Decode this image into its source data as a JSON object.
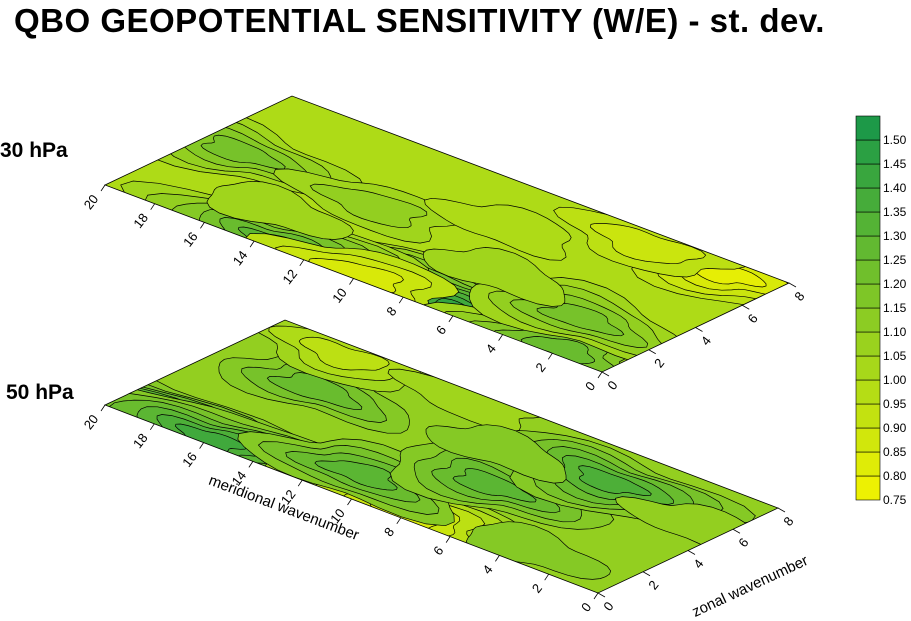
{
  "title": "QBO GEOPOTENTIAL SENSITIVITY (W/E) - st. dev.",
  "levels": [
    "30 hPa",
    "50 hPa"
  ],
  "colors": {
    "low": "#f4f300",
    "high": "#16964a",
    "panel_top_base": "#b9de14",
    "panel_bottom_base": "#8fcc24",
    "contour": "#000000"
  },
  "chart_data": [
    {
      "type": "heatmap",
      "panel": "30 hPa",
      "xlabel": "",
      "ylabel": "",
      "x_name": "meridional wavenumber",
      "y_name": "zonal wavenumber",
      "xlim": [
        0,
        20
      ],
      "ylim": [
        0,
        8
      ],
      "x_ticks": [
        "0",
        "2",
        "4",
        "6",
        "8",
        "10",
        "12",
        "14",
        "16",
        "18",
        "20"
      ],
      "y_ticks": [
        "0",
        "2",
        "4",
        "6",
        "8"
      ],
      "base_value": 1.0,
      "features": [
        {
          "x": 6,
          "y": 0.4,
          "value": 1.45
        },
        {
          "x": 13.5,
          "y": 0.3,
          "value": 1.3
        },
        {
          "x": 10,
          "y": 0.3,
          "value": 0.85
        },
        {
          "x": 2,
          "y": 0.4,
          "value": 1.25
        },
        {
          "x": 3,
          "y": 2.3,
          "value": 1.2
        },
        {
          "x": 18.5,
          "y": 4.2,
          "value": 1.2
        },
        {
          "x": 2,
          "y": 7.3,
          "value": 0.8
        },
        {
          "x": 5,
          "y": 7.2,
          "value": 0.9
        },
        {
          "x": 13,
          "y": 4,
          "value": 1.1
        },
        {
          "x": 9,
          "y": 5.5,
          "value": 1.0
        },
        {
          "x": 7,
          "y": 3,
          "value": 1.05
        },
        {
          "x": 15,
          "y": 2,
          "value": 1.05
        }
      ]
    },
    {
      "type": "heatmap",
      "panel": "50 hPa",
      "xlabel": "meridional wavenumber",
      "ylabel": "zonal wavenumber",
      "xlim": [
        0,
        20
      ],
      "ylim": [
        0,
        8
      ],
      "x_ticks": [
        "0",
        "2",
        "4",
        "6",
        "8",
        "10",
        "12",
        "14",
        "16",
        "18",
        "20"
      ],
      "y_ticks": [
        "0",
        "2",
        "4",
        "6",
        "8"
      ],
      "base_value": 1.1,
      "features": [
        {
          "x": 20,
          "y": 0.3,
          "value": 1.5
        },
        {
          "x": 16,
          "y": 0.3,
          "value": 1.4
        },
        {
          "x": 8,
          "y": 0.3,
          "value": 0.85
        },
        {
          "x": 11,
          "y": 1.5,
          "value": 1.3
        },
        {
          "x": 16,
          "y": 5,
          "value": 1.25
        },
        {
          "x": 7.5,
          "y": 3.5,
          "value": 1.3
        },
        {
          "x": 5,
          "y": 6,
          "value": 1.35
        },
        {
          "x": 17,
          "y": 7.3,
          "value": 0.95
        },
        {
          "x": 12,
          "y": 7.5,
          "value": 1.05
        },
        {
          "x": 1,
          "y": 5.5,
          "value": 1.1
        },
        {
          "x": 9,
          "y": 5.5,
          "value": 1.15
        },
        {
          "x": 3.5,
          "y": 1,
          "value": 1.15
        }
      ]
    }
  ],
  "legend": {
    "values": [
      "0.75",
      "0.80",
      "0.85",
      "0.90",
      "0.95",
      "1.00",
      "1.05",
      "1.10",
      "1.15",
      "1.20",
      "1.25",
      "1.30",
      "1.35",
      "1.40",
      "1.45",
      "1.50"
    ],
    "min": 0.75,
    "max": 1.55,
    "step": 0.05
  }
}
